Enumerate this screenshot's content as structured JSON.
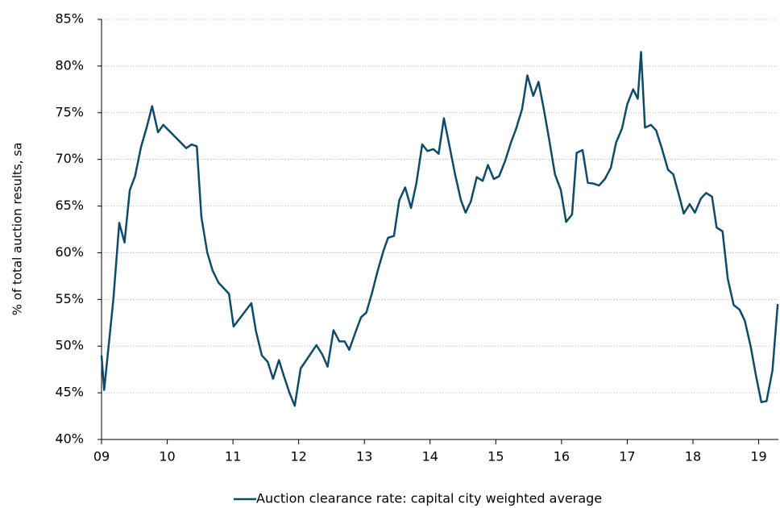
{
  "chart_data": {
    "type": "line",
    "y_label": "% of total auction results, sa",
    "legend_position": "bottom",
    "grid": true,
    "xlim": [
      2009,
      2019.3
    ],
    "xticks": [
      {
        "value": 2009,
        "label": "09"
      },
      {
        "value": 2010,
        "label": "10"
      },
      {
        "value": 2011,
        "label": "11"
      },
      {
        "value": 2012,
        "label": "12"
      },
      {
        "value": 2013,
        "label": "13"
      },
      {
        "value": 2014,
        "label": "14"
      },
      {
        "value": 2015,
        "label": "15"
      },
      {
        "value": 2016,
        "label": "16"
      },
      {
        "value": 2017,
        "label": "17"
      },
      {
        "value": 2018,
        "label": "18"
      },
      {
        "value": 2019,
        "label": "19"
      }
    ],
    "ylim": [
      40,
      85
    ],
    "yticks": [
      {
        "value": 40,
        "label": "40%"
      },
      {
        "value": 45,
        "label": "45%"
      },
      {
        "value": 50,
        "label": "50%"
      },
      {
        "value": 55,
        "label": "55%"
      },
      {
        "value": 60,
        "label": "60%"
      },
      {
        "value": 65,
        "label": "65%"
      },
      {
        "value": 70,
        "label": "70%"
      },
      {
        "value": 75,
        "label": "75%"
      },
      {
        "value": 80,
        "label": "80%"
      },
      {
        "value": 85,
        "label": "85%"
      }
    ],
    "x": [
      2009.0,
      2009.04,
      2009.18,
      2009.27,
      2009.35,
      2009.43,
      2009.51,
      2009.6,
      2009.69,
      2009.77,
      2009.86,
      2009.94,
      2010.29,
      2010.37,
      2010.45,
      2010.52,
      2010.61,
      2010.69,
      2010.78,
      2010.94,
      2011.01,
      2011.28,
      2011.35,
      2011.44,
      2011.53,
      2011.61,
      2011.7,
      2011.77,
      2011.86,
      2011.94,
      2012.03,
      2012.27,
      2012.36,
      2012.44,
      2012.53,
      2012.62,
      2012.7,
      2012.77,
      2012.86,
      2012.95,
      2013.03,
      2013.12,
      2013.2,
      2013.29,
      2013.36,
      2013.45,
      2013.53,
      2013.62,
      2013.71,
      2013.79,
      2013.88,
      2013.96,
      2014.05,
      2014.13,
      2014.21,
      2014.29,
      2014.38,
      2014.47,
      2014.54,
      2014.62,
      2014.71,
      2014.8,
      2014.88,
      2014.97,
      2015.05,
      2015.14,
      2015.23,
      2015.31,
      2015.4,
      2015.48,
      2015.57,
      2015.65,
      2015.73,
      2015.81,
      2015.9,
      2015.99,
      2016.07,
      2016.16,
      2016.23,
      2016.32,
      2016.4,
      2016.49,
      2016.57,
      2016.66,
      2016.75,
      2016.83,
      2016.92,
      2017.0,
      2017.09,
      2017.16,
      2017.21,
      2017.27,
      2017.36,
      2017.44,
      2017.53,
      2017.62,
      2017.7,
      2017.79,
      2017.86,
      2017.95,
      2018.03,
      2018.12,
      2018.2,
      2018.29,
      2018.36,
      2018.45,
      2018.53,
      2018.62,
      2018.71,
      2018.79,
      2018.88,
      2018.96,
      2019.04,
      2019.12,
      2019.21,
      2019.29
    ],
    "series": [
      {
        "name": "Auction clearance rate: capital city weighted average",
        "color": "#0e4a6a",
        "values": [
          49,
          45.3,
          55,
          63.2,
          61.1,
          66.7,
          68.2,
          71.3,
          73.5,
          75.7,
          72.9,
          73.7,
          71.2,
          71.6,
          71.4,
          63.8,
          60,
          58.1,
          56.8,
          55.6,
          52.1,
          54.6,
          51.6,
          49,
          48.3,
          46.5,
          48.5,
          46.9,
          45,
          43.6,
          47.6,
          50.1,
          49.1,
          47.8,
          51.7,
          50.5,
          50.5,
          49.6,
          51.4,
          53.1,
          53.6,
          55.8,
          58,
          60.2,
          61.6,
          61.8,
          65.6,
          67,
          64.8,
          67.4,
          71.6,
          70.9,
          71.1,
          70.6,
          74.4,
          71.6,
          68.4,
          65.6,
          64.3,
          65.5,
          68.1,
          67.7,
          69.4,
          67.9,
          68.2,
          69.8,
          71.8,
          73.3,
          75.4,
          79,
          76.8,
          78.3,
          75.4,
          72.2,
          68.4,
          66.7,
          63.3,
          64.1,
          70.7,
          71,
          67.5,
          67.4,
          67.2,
          67.9,
          69.1,
          71.8,
          73.3,
          75.9,
          77.5,
          76.5,
          81.5,
          73.4,
          73.7,
          73.1,
          71.1,
          68.9,
          68.4,
          66.1,
          64.2,
          65.2,
          64.3,
          65.8,
          66.4,
          66,
          62.7,
          62.3,
          57.2,
          54.4,
          53.9,
          52.7,
          49.9,
          46.8,
          44,
          44.1,
          47.4,
          54.5
        ]
      }
    ]
  }
}
